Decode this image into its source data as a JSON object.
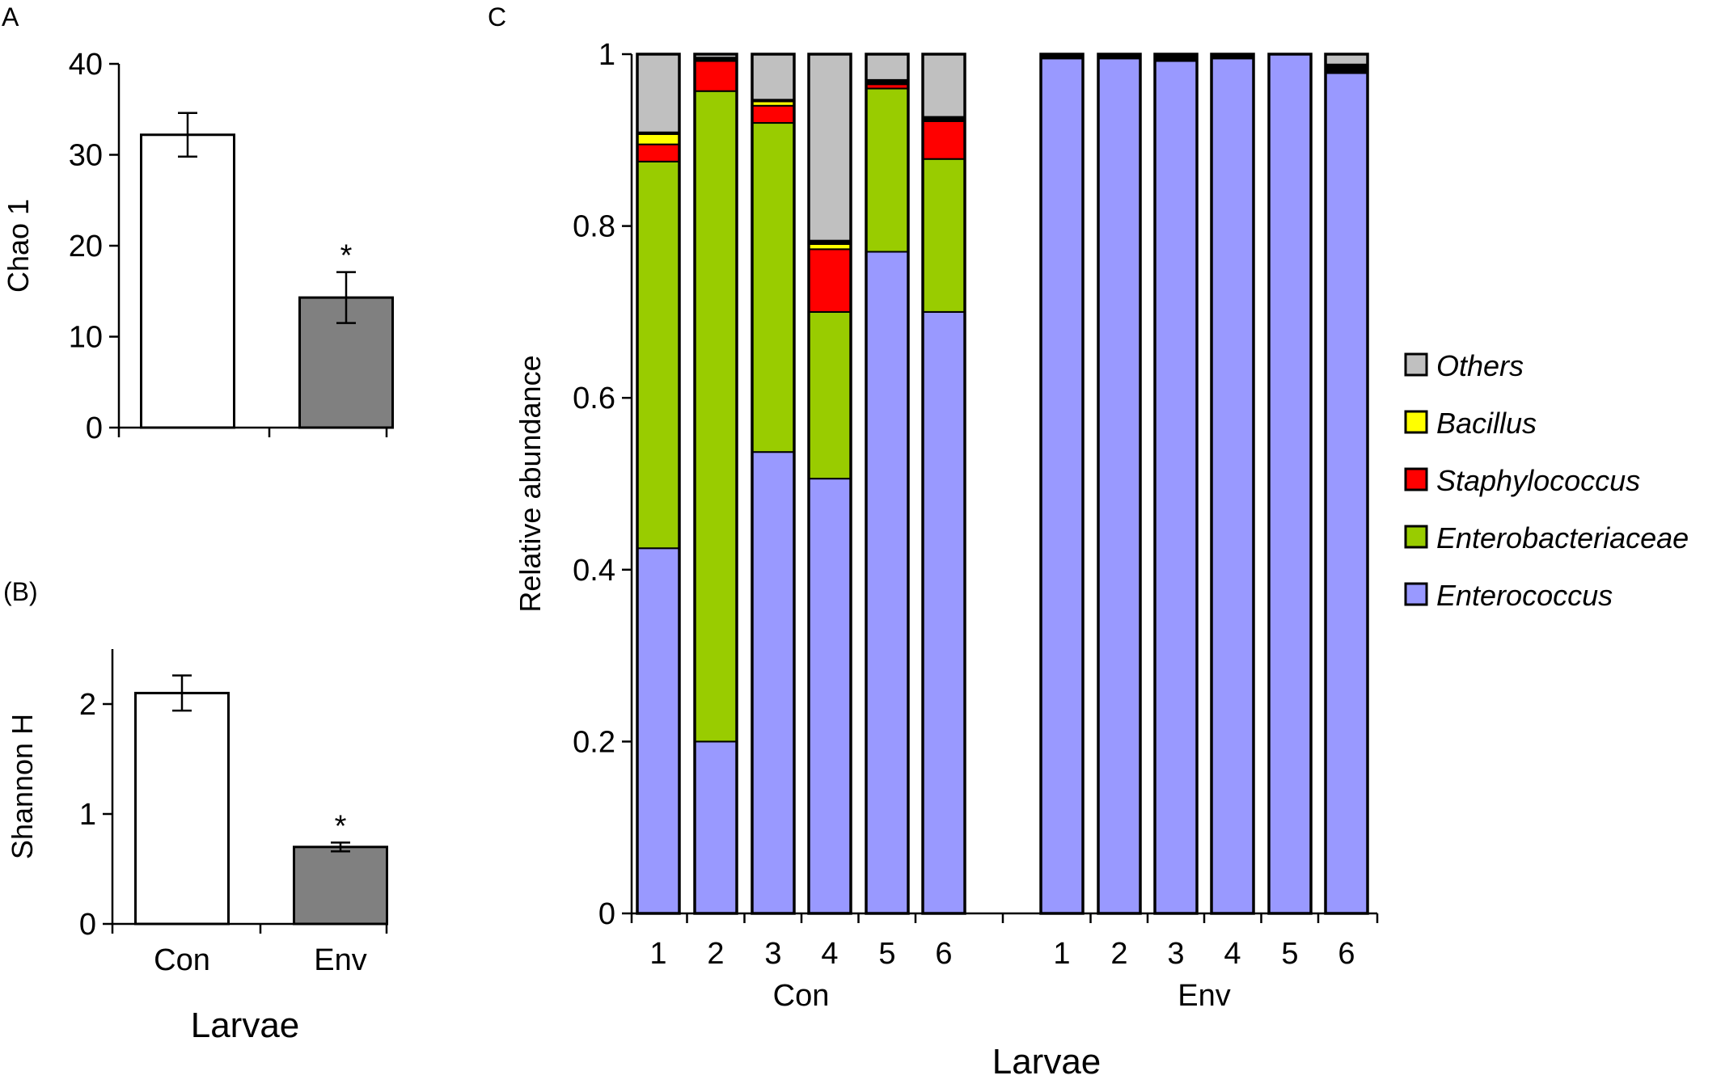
{
  "chart_data": [
    {
      "panel": "A",
      "type": "bar",
      "categories": [
        "Con",
        "Env"
      ],
      "values": [
        32.2,
        14.3
      ],
      "errors": [
        2.4,
        2.8
      ],
      "significance": [
        "",
        "*"
      ],
      "colors": [
        "#ffffff",
        "#808080"
      ],
      "ylabel": "Chao 1",
      "yticks": [
        "0",
        "10",
        "20",
        "30",
        "40"
      ],
      "ylim": [
        0,
        40
      ]
    },
    {
      "panel": "(B)",
      "type": "bar",
      "categories": [
        "Con",
        "Env"
      ],
      "values": [
        2.1,
        0.7
      ],
      "errors": [
        0.16,
        0.04
      ],
      "significance": [
        "",
        "*"
      ],
      "colors": [
        "#ffffff",
        "#808080"
      ],
      "ylabel": "Shannon H",
      "xlabel": "Larvae",
      "yticks": [
        "0",
        "1",
        "2"
      ],
      "ylim": [
        0,
        2.5
      ]
    },
    {
      "panel": "C",
      "type": "bar",
      "stacked": true,
      "ylabel": "Relative abundance",
      "xlabel": "Larvae",
      "ylim": [
        0,
        1
      ],
      "yticks": [
        "0",
        "0.2",
        "0.4",
        "0.6",
        "0.8",
        "1"
      ],
      "groups": [
        {
          "name": "Con",
          "categories": [
            "1",
            "2",
            "3",
            "4",
            "5",
            "6"
          ]
        },
        {
          "name": "Env",
          "categories": [
            "1",
            "2",
            "3",
            "4",
            "5",
            "6"
          ]
        }
      ],
      "series": [
        {
          "name": "Enterococcus",
          "color": "#9999ff",
          "values": [
            0.425,
            0.2,
            0.537,
            0.506,
            0.77,
            0.7,
            0.995,
            0.995,
            0.992,
            0.995,
            1.0,
            0.978
          ]
        },
        {
          "name": "Enterobacteriaceae",
          "color": "#99cc00",
          "values": [
            0.45,
            0.757,
            0.383,
            0.194,
            0.19,
            0.178,
            0,
            0,
            0,
            0,
            0,
            0
          ]
        },
        {
          "name": "Staphylococcus",
          "color": "#ff0000",
          "values": [
            0.02,
            0.035,
            0.02,
            0.073,
            0.005,
            0.044,
            0,
            0,
            0,
            0,
            0,
            0
          ]
        },
        {
          "name": "Bacillus",
          "color": "#ffff00",
          "values": [
            0.012,
            0.002,
            0.005,
            0.006,
            0.001,
            0,
            0,
            0,
            0,
            0,
            0,
            0
          ]
        },
        {
          "name": "",
          "color": "#000000",
          "values": [
            0.002,
            0.002,
            0.002,
            0.004,
            0.004,
            0.005,
            0.005,
            0.005,
            0.008,
            0.005,
            0,
            0.01
          ]
        },
        {
          "name": "Others",
          "color": "#c0c0c0",
          "values": [
            0.091,
            0.004,
            0.053,
            0.217,
            0.03,
            0.073,
            0,
            0,
            0,
            0,
            0,
            0.012
          ]
        }
      ],
      "legend": [
        "Others",
        "Bacillus",
        "Staphylococcus",
        "Enterobacteriaceae",
        "Enterococcus"
      ]
    }
  ]
}
